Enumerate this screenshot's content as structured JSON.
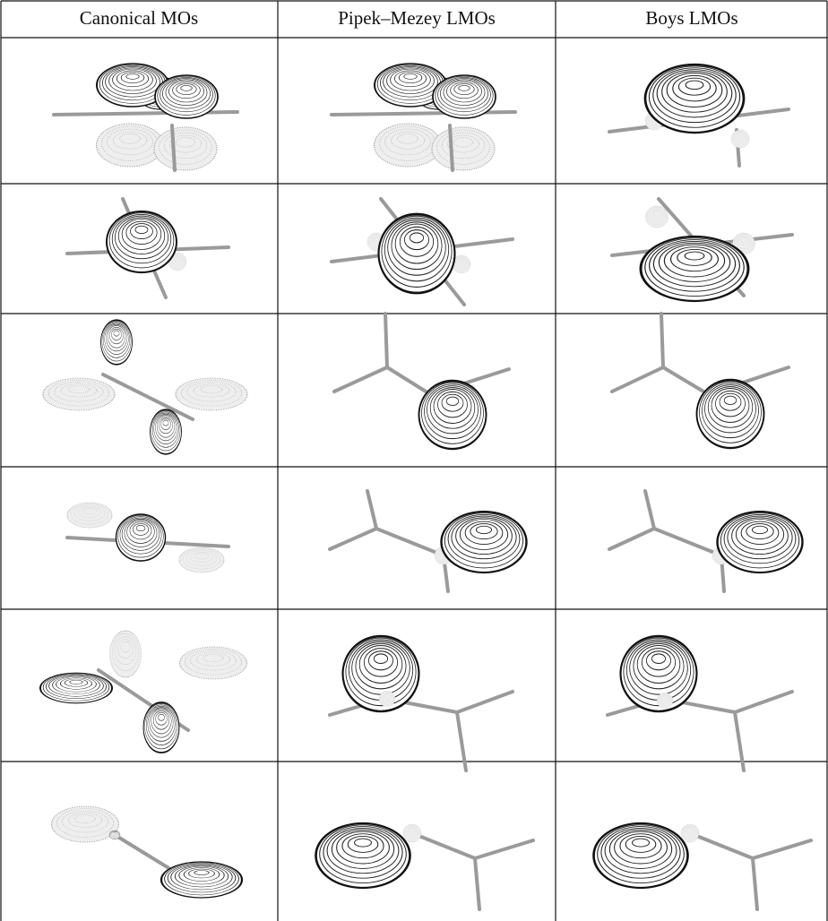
{
  "table": {
    "header": [
      "Canonical MOs",
      "Pipek–Mezey LMOs",
      "Boys LMOs"
    ]
  }
}
